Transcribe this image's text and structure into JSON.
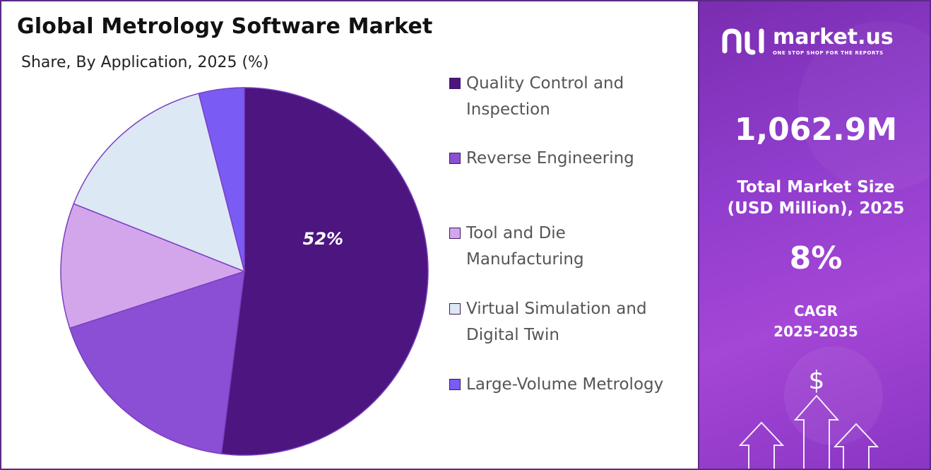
{
  "header": {
    "title": "Global Metrology Software Market",
    "subtitle": "Share, By Application, 2025 (%)"
  },
  "chart_data": {
    "type": "pie",
    "title": "Global Metrology Software Market",
    "subtitle": "Share, By Application, 2025 (%)",
    "categories": [
      "Quality Control and Inspection",
      "Reverse Engineering",
      "Tool and Die Manufacturing",
      "Virtual Simulation and Digital Twin",
      "Large-Volume Metrology"
    ],
    "values": [
      52,
      18,
      11,
      15,
      4
    ],
    "colors": [
      "#4c1580",
      "#8a4fd4",
      "#d3a6ec",
      "#dde8f5",
      "#7a5cf5"
    ],
    "data_labels": [
      "52%",
      "",
      "",
      "",
      ""
    ],
    "legend_position": "right"
  },
  "legend": {
    "items": [
      {
        "label_line1": "Quality Control and",
        "label_line2": "Inspection",
        "color": "#4c1580"
      },
      {
        "label_line1": "Reverse Engineering",
        "label_line2": "",
        "color": "#8a4fd4"
      },
      {
        "label_line1": "Tool and Die",
        "label_line2": "Manufacturing",
        "color": "#d3a6ec"
      },
      {
        "label_line1": "Virtual Simulation and",
        "label_line2": "Digital Twin",
        "color": "#dde8f5"
      },
      {
        "label_line1": "Large-Volume Metrology",
        "label_line2": "",
        "color": "#7a5cf5"
      }
    ]
  },
  "sidebar": {
    "brand_name": "market.us",
    "brand_tagline": "ONE STOP SHOP FOR THE REPORTS",
    "market_size_value": "1,062.9M",
    "market_size_label_line1": "Total Market Size",
    "market_size_label_line2": "(USD Million), 2025",
    "cagr_value": "8%",
    "cagr_label_line1": "CAGR",
    "cagr_label_line2": "2025-2035",
    "dollar_symbol": "$",
    "accent_color": "#8f3ccc"
  }
}
